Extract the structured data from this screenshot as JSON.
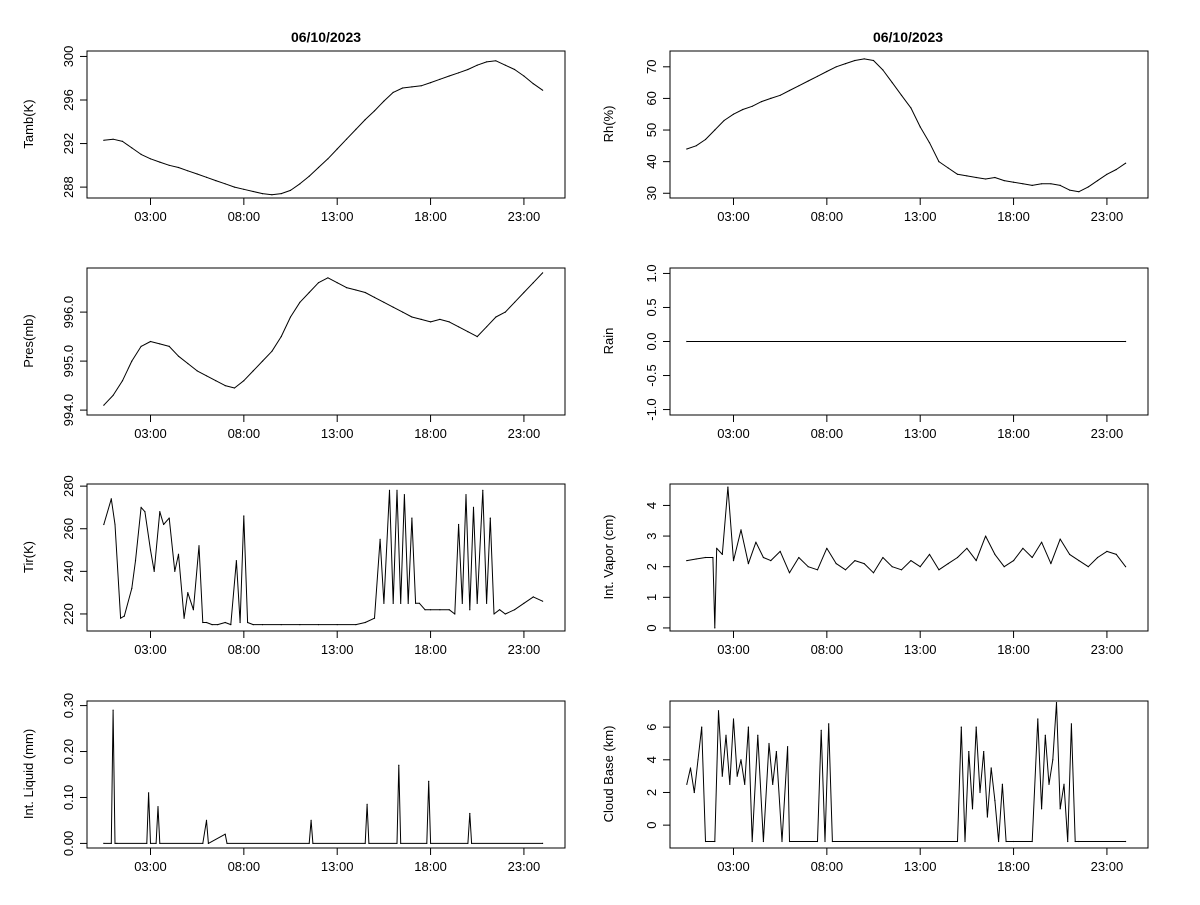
{
  "figure": {
    "date": "06/10/2023"
  },
  "chart_data": [
    {
      "id": "tamb",
      "type": "line",
      "title": "06/10/2023",
      "ylabel": "Tamb(K)",
      "ylim": [
        287,
        300.5
      ],
      "yticks": [
        288,
        292,
        296,
        300
      ],
      "xticks": [
        "03:00",
        "08:00",
        "13:00",
        "18:00",
        "23:00"
      ],
      "series": [
        {
          "name": "Tamb",
          "x": [
            0.5,
            1.0,
            1.5,
            2.0,
            2.5,
            3.0,
            3.5,
            4.0,
            4.5,
            5.0,
            5.5,
            6.0,
            6.5,
            7.0,
            7.5,
            8.0,
            8.5,
            9.0,
            9.5,
            10.0,
            10.5,
            11.0,
            11.5,
            12.0,
            12.5,
            13.0,
            13.5,
            14.0,
            14.5,
            15.0,
            15.5,
            16.0,
            16.5,
            17.0,
            17.5,
            18.0,
            18.5,
            19.0,
            19.5,
            20.0,
            20.5,
            21.0,
            21.5,
            22.0,
            22.5,
            23.0,
            23.5,
            24.0
          ],
          "values": [
            292.3,
            292.4,
            292.2,
            291.6,
            291.0,
            290.6,
            290.3,
            290.0,
            289.8,
            289.5,
            289.2,
            288.9,
            288.6,
            288.3,
            288.0,
            287.8,
            287.6,
            287.4,
            287.3,
            287.4,
            287.7,
            288.3,
            289.0,
            289.8,
            290.6,
            291.5,
            292.4,
            293.3,
            294.2,
            295.0,
            295.9,
            296.7,
            297.1,
            297.2,
            297.3,
            297.6,
            297.9,
            298.2,
            298.5,
            298.8,
            299.2,
            299.5,
            299.6,
            299.2,
            298.8,
            298.2,
            297.5,
            296.9
          ]
        }
      ]
    },
    {
      "id": "rh",
      "type": "line",
      "title": "06/10/2023",
      "ylabel": "Rh(%)",
      "ylim": [
        28.5,
        75
      ],
      "yticks": [
        30,
        40,
        50,
        60,
        70
      ],
      "xticks": [
        "03:00",
        "08:00",
        "13:00",
        "18:00",
        "23:00"
      ],
      "series": [
        {
          "name": "Rh",
          "x": [
            0.5,
            1.0,
            1.5,
            2.0,
            2.5,
            3.0,
            3.5,
            4.0,
            4.5,
            5.0,
            5.5,
            6.0,
            6.5,
            7.0,
            7.5,
            8.0,
            8.5,
            9.0,
            9.5,
            10.0,
            10.5,
            11.0,
            11.5,
            12.0,
            12.5,
            13.0,
            13.5,
            14.0,
            14.5,
            15.0,
            15.5,
            16.0,
            16.5,
            17.0,
            17.5,
            18.0,
            18.5,
            19.0,
            19.5,
            20.0,
            20.5,
            21.0,
            21.5,
            22.0,
            22.5,
            23.0,
            23.5,
            24.0
          ],
          "values": [
            44,
            45,
            47,
            50,
            53,
            55,
            56.5,
            57.5,
            59,
            60,
            61,
            62.5,
            64,
            65.5,
            67,
            68.5,
            70,
            71,
            72,
            72.5,
            72,
            69,
            65,
            61,
            57,
            51,
            46,
            40,
            38,
            36,
            35.5,
            35,
            34.5,
            35,
            34,
            33.5,
            33,
            32.5,
            33,
            33,
            32.5,
            31,
            30.5,
            32,
            34,
            36,
            37.5,
            39.5
          ]
        }
      ]
    },
    {
      "id": "pres",
      "type": "line",
      "title": "",
      "ylabel": "Pres(mb)",
      "ylim": [
        993.9,
        996.9
      ],
      "yticks": [
        994.0,
        995.0,
        996.0
      ],
      "ytick_labels": [
        "994.0",
        "995.0",
        "996.0"
      ],
      "xticks": [
        "03:00",
        "08:00",
        "13:00",
        "18:00",
        "23:00"
      ],
      "series": [
        {
          "name": "Pres",
          "x": [
            0.5,
            1.0,
            1.5,
            2.0,
            2.5,
            3.0,
            3.5,
            4.0,
            4.5,
            5.0,
            5.5,
            6.0,
            6.5,
            7.0,
            7.5,
            8.0,
            8.5,
            9.0,
            9.5,
            10.0,
            10.5,
            11.0,
            11.5,
            12.0,
            12.5,
            13.0,
            13.5,
            14.0,
            14.5,
            15.0,
            15.5,
            16.0,
            16.5,
            17.0,
            17.5,
            18.0,
            18.5,
            19.0,
            19.5,
            20.0,
            20.5,
            21.0,
            21.5,
            22.0,
            22.5,
            23.0,
            23.5,
            24.0
          ],
          "values": [
            994.1,
            994.3,
            994.6,
            995.0,
            995.3,
            995.4,
            995.35,
            995.3,
            995.1,
            994.95,
            994.8,
            994.7,
            994.6,
            994.5,
            994.45,
            994.6,
            994.8,
            995.0,
            995.2,
            995.5,
            995.9,
            996.2,
            996.4,
            996.6,
            996.7,
            996.6,
            996.5,
            996.45,
            996.4,
            996.3,
            996.2,
            996.1,
            996.0,
            995.9,
            995.85,
            995.8,
            995.85,
            995.8,
            995.7,
            995.6,
            995.5,
            995.7,
            995.9,
            996.0,
            996.2,
            996.4,
            996.6,
            996.8
          ]
        }
      ]
    },
    {
      "id": "rain",
      "type": "line",
      "title": "",
      "ylabel": "Rain",
      "ylim": [
        -1.08,
        1.08
      ],
      "yticks": [
        -1.0,
        -0.5,
        0.0,
        0.5,
        1.0
      ],
      "ytick_labels": [
        "-1.0",
        "-0.5",
        "0.0",
        "0.5",
        "1.0"
      ],
      "xticks": [
        "03:00",
        "08:00",
        "13:00",
        "18:00",
        "23:00"
      ],
      "series": [
        {
          "name": "Rain",
          "x": [
            0.5,
            24.0
          ],
          "values": [
            0.0,
            0.0
          ]
        }
      ]
    },
    {
      "id": "tir",
      "type": "line",
      "title": "",
      "ylabel": "Tir(K)",
      "ylim": [
        212,
        281
      ],
      "yticks": [
        220,
        240,
        260,
        280
      ],
      "xticks": [
        "03:00",
        "08:00",
        "13:00",
        "18:00",
        "23:00"
      ],
      "series": [
        {
          "name": "Tir",
          "x": [
            0.5,
            0.9,
            1.1,
            1.4,
            1.6,
            2.0,
            2.2,
            2.5,
            2.7,
            3.0,
            3.2,
            3.5,
            3.7,
            4.0,
            4.3,
            4.5,
            4.8,
            5.0,
            5.3,
            5.6,
            5.8,
            6.0,
            6.3,
            6.6,
            7.0,
            7.3,
            7.6,
            7.8,
            8.0,
            8.2,
            8.5,
            9.0,
            10.0,
            11.0,
            12.0,
            13.0,
            14.0,
            14.5,
            15.0,
            15.3,
            15.5,
            15.8,
            16.0,
            16.2,
            16.4,
            16.6,
            16.8,
            17.0,
            17.2,
            17.4,
            17.7,
            18.0,
            18.5,
            19.0,
            19.3,
            19.5,
            19.7,
            19.9,
            20.1,
            20.3,
            20.5,
            20.8,
            21.0,
            21.2,
            21.4,
            21.7,
            22.0,
            22.5,
            23.0,
            23.5,
            24.0
          ],
          "values": [
            262,
            274,
            262,
            218,
            219,
            232,
            245,
            270,
            268,
            250,
            240,
            268,
            262,
            265,
            240,
            248,
            218,
            230,
            222,
            252,
            216,
            216,
            215,
            215,
            216,
            215,
            245,
            216,
            266,
            216,
            215,
            215,
            215,
            215,
            215,
            215,
            215,
            216,
            218,
            255,
            225,
            278,
            225,
            278,
            225,
            276,
            225,
            265,
            225,
            225,
            222,
            222,
            222,
            222,
            220,
            262,
            225,
            276,
            222,
            270,
            225,
            278,
            225,
            265,
            220,
            222,
            220,
            222,
            225,
            228,
            226
          ]
        }
      ]
    },
    {
      "id": "vapor",
      "type": "line",
      "title": "",
      "ylabel": "Int. Vapor (cm)",
      "ylim": [
        -0.1,
        4.7
      ],
      "yticks": [
        0,
        1,
        2,
        3,
        4
      ],
      "xticks": [
        "03:00",
        "08:00",
        "13:00",
        "18:00",
        "23:00"
      ],
      "series": [
        {
          "name": "Int. Vapor",
          "x": [
            0.5,
            1.0,
            1.5,
            1.9,
            2.0,
            2.1,
            2.4,
            2.7,
            3.0,
            3.4,
            3.8,
            4.2,
            4.6,
            5.0,
            5.5,
            6.0,
            6.5,
            7.0,
            7.5,
            8.0,
            8.5,
            9.0,
            9.5,
            10.0,
            10.5,
            11.0,
            11.5,
            12.0,
            12.5,
            13.0,
            13.5,
            14.0,
            14.5,
            15.0,
            15.5,
            16.0,
            16.5,
            17.0,
            17.5,
            18.0,
            18.5,
            19.0,
            19.5,
            20.0,
            20.5,
            21.0,
            21.5,
            22.0,
            22.5,
            23.0,
            23.5,
            24.0
          ],
          "values": [
            2.2,
            2.25,
            2.3,
            2.3,
            0.0,
            2.6,
            2.4,
            4.6,
            2.2,
            3.2,
            2.1,
            2.8,
            2.3,
            2.2,
            2.5,
            1.8,
            2.3,
            2.0,
            1.9,
            2.6,
            2.1,
            1.9,
            2.2,
            2.1,
            1.8,
            2.3,
            2.0,
            1.9,
            2.2,
            2.0,
            2.4,
            1.9,
            2.1,
            2.3,
            2.6,
            2.2,
            3.0,
            2.4,
            2.0,
            2.2,
            2.6,
            2.3,
            2.8,
            2.1,
            2.9,
            2.4,
            2.2,
            2.0,
            2.3,
            2.5,
            2.4,
            2.0
          ]
        }
      ]
    },
    {
      "id": "liquid",
      "type": "line",
      "title": "",
      "ylabel": "Int. Liquid (mm)",
      "ylim": [
        -0.01,
        0.31
      ],
      "yticks": [
        0.0,
        0.1,
        0.2,
        0.3
      ],
      "ytick_labels": [
        "0.00",
        "0.10",
        "0.20",
        "0.30"
      ],
      "xticks": [
        "03:00",
        "08:00",
        "13:00",
        "18:00",
        "23:00"
      ],
      "series": [
        {
          "name": "Int. Liquid",
          "x": [
            0.5,
            0.9,
            1.0,
            1.1,
            1.2,
            2.8,
            2.9,
            3.0,
            3.3,
            3.4,
            3.5,
            5.8,
            6.0,
            6.1,
            7.0,
            7.1,
            11.5,
            11.6,
            11.7,
            14.5,
            14.6,
            14.7,
            16.2,
            16.3,
            16.4,
            17.8,
            17.9,
            18.0,
            20.0,
            20.1,
            20.2,
            24.0
          ],
          "values": [
            0.0,
            0.0,
            0.29,
            0.0,
            0.0,
            0.0,
            0.11,
            0.0,
            0.0,
            0.08,
            0.0,
            0.0,
            0.05,
            0.0,
            0.02,
            0.0,
            0.0,
            0.05,
            0.0,
            0.0,
            0.085,
            0.0,
            0.0,
            0.17,
            0.0,
            0.0,
            0.135,
            0.0,
            0.0,
            0.065,
            0.0,
            0.0
          ]
        }
      ]
    },
    {
      "id": "cloudbase",
      "type": "line",
      "title": "",
      "ylabel": "Cloud Base (km)",
      "ylim": [
        -1.4,
        7.6
      ],
      "yticks": [
        0,
        2,
        4,
        6
      ],
      "xticks": [
        "03:00",
        "08:00",
        "13:00",
        "18:00",
        "23:00"
      ],
      "series": [
        {
          "name": "Cloud Base",
          "x": [
            0.5,
            0.7,
            0.9,
            1.1,
            1.3,
            1.5,
            2.0,
            2.2,
            2.4,
            2.6,
            2.8,
            3.0,
            3.2,
            3.4,
            3.6,
            3.8,
            4.0,
            4.3,
            4.6,
            4.9,
            5.1,
            5.3,
            5.6,
            5.9,
            6.0,
            7.5,
            7.7,
            7.9,
            8.1,
            8.3,
            15.0,
            15.2,
            15.4,
            15.6,
            15.8,
            16.0,
            16.2,
            16.4,
            16.6,
            16.8,
            17.0,
            17.2,
            17.4,
            17.6,
            18.0,
            19.0,
            19.3,
            19.5,
            19.7,
            19.9,
            20.1,
            20.3,
            20.5,
            20.7,
            20.9,
            21.1,
            21.3,
            21.5,
            24.0
          ],
          "values": [
            2.5,
            3.5,
            2.0,
            4.0,
            6.0,
            -1.0,
            -1.0,
            7.0,
            3.0,
            5.5,
            2.5,
            6.5,
            3.0,
            4.0,
            2.5,
            6.0,
            -1.0,
            5.5,
            -1.0,
            5.0,
            2.5,
            4.5,
            -1.0,
            4.8,
            -1.0,
            -1.0,
            5.8,
            -1.0,
            6.2,
            -1.0,
            -1.0,
            6.0,
            -1.0,
            4.5,
            1.0,
            6.0,
            2.0,
            4.5,
            0.5,
            3.5,
            1.5,
            -1.0,
            2.5,
            -1.0,
            -1.0,
            -1.0,
            6.5,
            1.0,
            5.5,
            2.5,
            4.0,
            7.5,
            1.0,
            2.5,
            -1.0,
            6.2,
            -1.0,
            -1.0,
            -1.0
          ]
        }
      ]
    }
  ]
}
